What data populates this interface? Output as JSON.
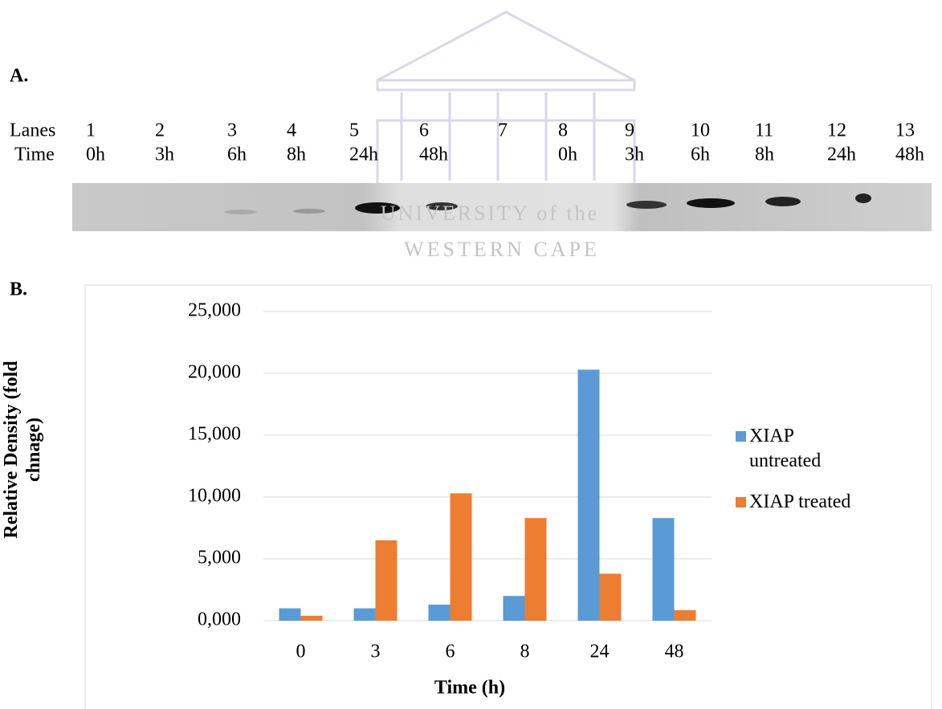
{
  "panel_labels": [
    "A.",
    "B."
  ],
  "blot": {
    "row_labels": [
      "Lanes",
      "Time"
    ],
    "lanes": [
      "1",
      "2",
      "3",
      "4",
      "5",
      "6",
      "7",
      "8",
      "9",
      "10",
      "11",
      "12",
      "13"
    ],
    "times": [
      "0h",
      "3h",
      "6h",
      "8h",
      "24h",
      "48h",
      null,
      "0h",
      "3h",
      "6h",
      "8h",
      "24h",
      "48h"
    ]
  },
  "watermark": [
    "UNIVERSITY of the",
    "WESTERN CAPE"
  ],
  "chart_data": {
    "type": "bar",
    "xlabel": "Time (h)",
    "ylabel": [
      "Relative Density (fold",
      "chnage)"
    ],
    "categories": [
      "0",
      "3",
      "6",
      "8",
      "24",
      "48"
    ],
    "series": [
      {
        "name": "XIAP untreated",
        "color": "#5b9bd5",
        "values": [
          1.0,
          1.0,
          1.3,
          2.0,
          20.3,
          8.3
        ]
      },
      {
        "name": "XIAP treated",
        "color": "#ed7d31",
        "values": [
          0.4,
          6.5,
          10.3,
          8.3,
          3.8,
          0.85
        ]
      }
    ],
    "ylim": [
      0,
      25
    ],
    "yticks": [
      {
        "value": 0,
        "label": "0,000"
      },
      {
        "value": 5,
        "label": "5,000"
      },
      {
        "value": 10,
        "label": "10,000"
      },
      {
        "value": 15,
        "label": "15,000"
      },
      {
        "value": 20,
        "label": "20,000"
      },
      {
        "value": 25,
        "label": "25,000"
      }
    ],
    "grid": true,
    "legend": "right"
  }
}
